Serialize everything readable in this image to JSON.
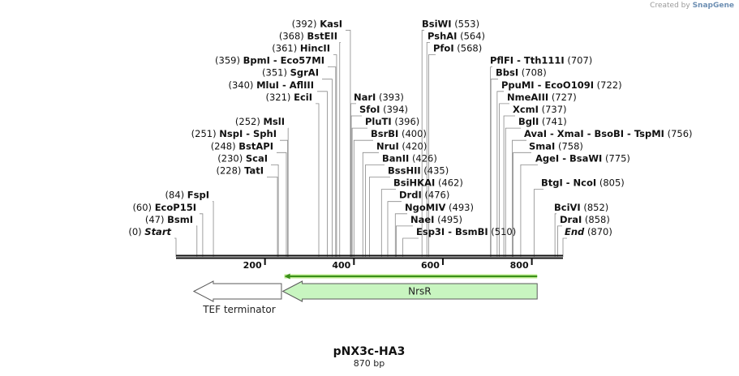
{
  "credit": {
    "prefix": "Created by",
    "brand": "SnapGene"
  },
  "plasmid": {
    "name": "pNX3c-HA3",
    "length_label": "870 bp",
    "length_bp": 870
  },
  "axis": {
    "ticks": [
      {
        "bp": 200,
        "label": "200"
      },
      {
        "bp": 400,
        "label": "400"
      },
      {
        "bp": 600,
        "label": "600"
      },
      {
        "bp": 800,
        "label": "800"
      }
    ]
  },
  "colors": {
    "backbone": "#111111",
    "nrsr_fill": "#c8f5c0",
    "nrsr_stroke": "#5a5a5a",
    "orf_line": "#3a8f1a",
    "tef_fill": "#ffffff"
  },
  "features": [
    {
      "name": "NrsR",
      "start_bp": 240,
      "end_bp": 812,
      "direction": "reverse",
      "label_inside": true
    },
    {
      "name": "TEF terminator",
      "start_bp": 40,
      "end_bp": 237,
      "direction": "reverse",
      "label_inside": false
    }
  ],
  "orf": {
    "start_bp": 240,
    "end_bp": 812,
    "direction": "reverse"
  },
  "sites": [
    {
      "parts": [
        "Start"
      ],
      "pos": "(0)",
      "bp": 0,
      "side": "left",
      "italic": true,
      "row": 0
    },
    {
      "parts": [
        "BsmI"
      ],
      "pos": "(47)",
      "bp": 47,
      "side": "left",
      "row": 1
    },
    {
      "parts": [
        "EcoP15I"
      ],
      "pos": "(60)",
      "bp": 60,
      "side": "left",
      "row": 2
    },
    {
      "parts": [
        "FspI"
      ],
      "pos": "(84)",
      "bp": 84,
      "side": "left",
      "row": 3
    },
    {
      "parts": [
        "TatI"
      ],
      "pos": "(228)",
      "bp": 228,
      "side": "left",
      "row": 5
    },
    {
      "parts": [
        "ScaI"
      ],
      "pos": "(230)",
      "bp": 230,
      "side": "left",
      "row": 6
    },
    {
      "parts": [
        "BstAPI"
      ],
      "pos": "(248)",
      "bp": 248,
      "side": "left",
      "row": 7
    },
    {
      "parts": [
        "NspI",
        "SphI"
      ],
      "pos": "(251)",
      "bp": 251,
      "side": "left",
      "row": 8
    },
    {
      "parts": [
        "MslI"
      ],
      "pos": "(252)",
      "bp": 252,
      "side": "left",
      "row": 9
    },
    {
      "parts": [
        "EciI"
      ],
      "pos": "(321)",
      "bp": 321,
      "side": "left",
      "row": 11
    },
    {
      "parts": [
        "MluI",
        "AflIII"
      ],
      "pos": "(340)",
      "bp": 340,
      "side": "left",
      "row": 12
    },
    {
      "parts": [
        "SgrAI"
      ],
      "pos": "(351)",
      "bp": 351,
      "side": "left",
      "row": 13
    },
    {
      "parts": [
        "BpmI",
        "Eco57MI"
      ],
      "pos": "(359)",
      "bp": 359,
      "side": "left",
      "row": 14
    },
    {
      "parts": [
        "HincII"
      ],
      "pos": "(361)",
      "bp": 361,
      "side": "left",
      "row": 15
    },
    {
      "parts": [
        "BstEII"
      ],
      "pos": "(368)",
      "bp": 368,
      "side": "left",
      "row": 16
    },
    {
      "parts": [
        "KasI"
      ],
      "pos": "(392)",
      "bp": 392,
      "side": "left",
      "row": 17
    },
    {
      "parts": [
        "Esp3I",
        "BsmBI"
      ],
      "pos": "(510)",
      "bp": 510,
      "side": "right",
      "row": 0
    },
    {
      "parts": [
        "NaeI"
      ],
      "pos": "(495)",
      "bp": 495,
      "side": "right",
      "row": 1
    },
    {
      "parts": [
        "NgoMIV"
      ],
      "pos": "(493)",
      "bp": 493,
      "side": "right",
      "row": 2
    },
    {
      "parts": [
        "DrdI"
      ],
      "pos": "(476)",
      "bp": 476,
      "side": "right",
      "row": 3
    },
    {
      "parts": [
        "BsiHKAI"
      ],
      "pos": "(462)",
      "bp": 462,
      "side": "right",
      "row": 4
    },
    {
      "parts": [
        "BssHII"
      ],
      "pos": "(435)",
      "bp": 435,
      "side": "right",
      "row": 5
    },
    {
      "parts": [
        "BanII"
      ],
      "pos": "(426)",
      "bp": 426,
      "side": "right",
      "row": 6
    },
    {
      "parts": [
        "NruI"
      ],
      "pos": "(420)",
      "bp": 420,
      "side": "right",
      "row": 7
    },
    {
      "parts": [
        "BsrBI"
      ],
      "pos": "(400)",
      "bp": 400,
      "side": "right",
      "row": 8
    },
    {
      "parts": [
        "PluTI"
      ],
      "pos": "(396)",
      "bp": 396,
      "side": "right",
      "row": 9
    },
    {
      "parts": [
        "SfoI"
      ],
      "pos": "(394)",
      "bp": 394,
      "side": "right",
      "row": 10
    },
    {
      "parts": [
        "NarI"
      ],
      "pos": "(393)",
      "bp": 393,
      "side": "right",
      "row": 11
    },
    {
      "parts": [
        "PfoI"
      ],
      "pos": "(568)",
      "bp": 568,
      "side": "right",
      "row": 15
    },
    {
      "parts": [
        "PshAI"
      ],
      "pos": "(564)",
      "bp": 564,
      "side": "right",
      "row": 16
    },
    {
      "parts": [
        "BsiWI"
      ],
      "pos": "(553)",
      "bp": 553,
      "side": "right",
      "row": 17
    },
    {
      "parts": [
        "End"
      ],
      "pos": "(870)",
      "bp": 870,
      "side": "right",
      "italic": true,
      "row": 0
    },
    {
      "parts": [
        "DraI"
      ],
      "pos": "(858)",
      "bp": 858,
      "side": "right",
      "row": 1
    },
    {
      "parts": [
        "BciVI"
      ],
      "pos": "(852)",
      "bp": 852,
      "side": "right",
      "row": 2
    },
    {
      "parts": [
        "BtgI",
        "NcoI"
      ],
      "pos": "(805)",
      "bp": 805,
      "side": "right",
      "row": 4
    },
    {
      "parts": [
        "AgeI",
        "BsaWI"
      ],
      "pos": "(775)",
      "bp": 775,
      "side": "right",
      "row": 6
    },
    {
      "parts": [
        "SmaI"
      ],
      "pos": "(758)",
      "bp": 758,
      "side": "right",
      "row": 7
    },
    {
      "parts": [
        "AvaI",
        "XmaI",
        "BsoBI",
        "TspMI"
      ],
      "pos": "(756)",
      "bp": 756,
      "side": "right",
      "row": 8
    },
    {
      "parts": [
        "BglI"
      ],
      "pos": "(741)",
      "bp": 741,
      "side": "right",
      "row": 9
    },
    {
      "parts": [
        "XcmI"
      ],
      "pos": "(737)",
      "bp": 737,
      "side": "right",
      "row": 10
    },
    {
      "parts": [
        "NmeAIII"
      ],
      "pos": "(727)",
      "bp": 727,
      "side": "right",
      "row": 11
    },
    {
      "parts": [
        "PpuMI",
        "EcoO109I"
      ],
      "pos": "(722)",
      "bp": 722,
      "side": "right",
      "row": 12
    },
    {
      "parts": [
        "BbsI"
      ],
      "pos": "(708)",
      "bp": 708,
      "side": "right",
      "row": 13
    },
    {
      "parts": [
        "PflFI",
        "Tth111I"
      ],
      "pos": "(707)",
      "bp": 707,
      "side": "right",
      "row": 14
    }
  ]
}
